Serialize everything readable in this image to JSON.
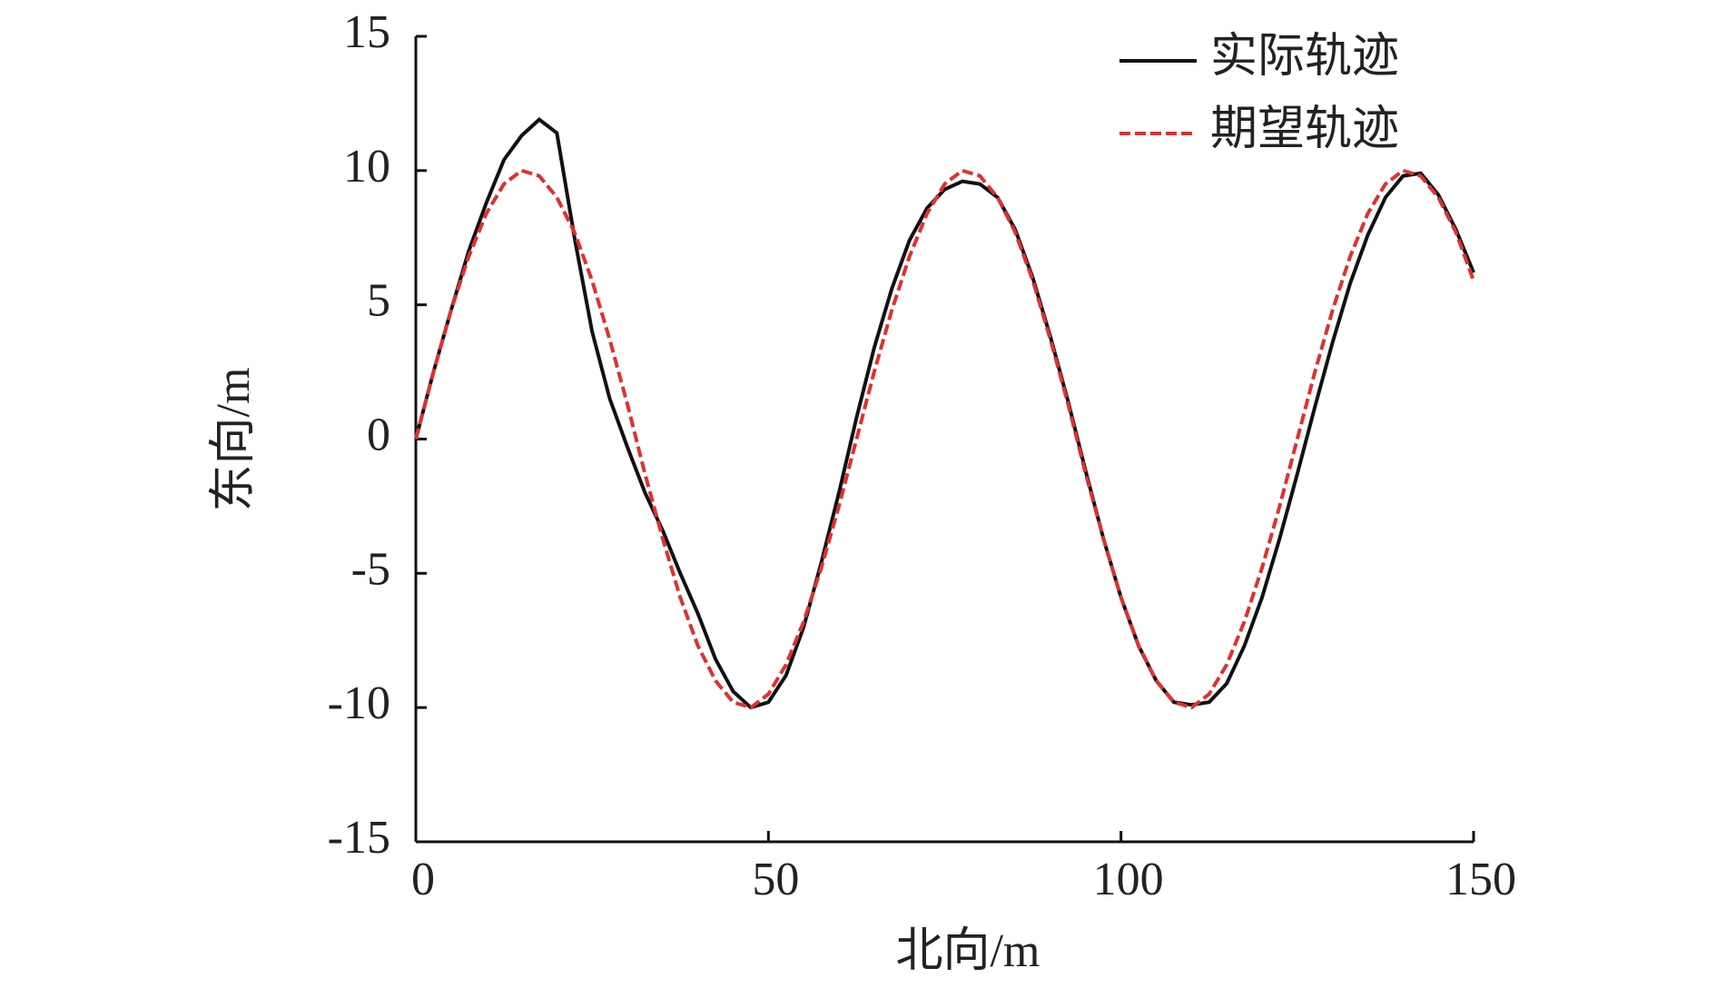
{
  "chart_data": {
    "type": "line",
    "xlabel": "北向/m",
    "ylabel": "东向/m",
    "x": [
      0,
      2.5,
      5,
      7.5,
      10,
      12.5,
      15,
      17.5,
      20,
      22.5,
      25,
      27.5,
      30,
      32.5,
      35,
      37.5,
      40,
      42.5,
      45,
      47.5,
      50,
      52.5,
      55,
      57.5,
      60,
      62.5,
      65,
      67.5,
      70,
      72.5,
      75,
      77.5,
      80,
      82.5,
      85,
      87.5,
      90,
      92.5,
      95,
      97.5,
      100,
      102.5,
      105,
      107.5,
      110,
      112.5,
      115,
      117.5,
      120,
      122.5,
      125,
      127.5,
      130,
      132.5,
      135,
      137.5,
      140,
      142.5,
      145,
      147.5,
      150
    ],
    "series": [
      {
        "name": "实际轨迹",
        "color": "#111111",
        "dash": false,
        "values": [
          0,
          2.5,
          4.8,
          7.0,
          8.8,
          10.4,
          11.3,
          11.9,
          11.4,
          7.5,
          4.0,
          1.5,
          -0.3,
          -2.0,
          -3.4,
          -5.0,
          -6.5,
          -8.2,
          -9.4,
          -10.0,
          -9.8,
          -8.8,
          -7.0,
          -4.6,
          -2.0,
          0.8,
          3.4,
          5.6,
          7.4,
          8.6,
          9.3,
          9.6,
          9.5,
          9.0,
          7.8,
          6.0,
          3.8,
          1.4,
          -1.2,
          -3.7,
          -5.9,
          -7.7,
          -9.0,
          -9.8,
          -9.9,
          -9.8,
          -9.1,
          -7.7,
          -5.9,
          -3.7,
          -1.3,
          1.2,
          3.6,
          5.8,
          7.6,
          9.0,
          9.8,
          9.9,
          9.1,
          7.8,
          6.2
        ]
      },
      {
        "name": "期望轨迹",
        "color": "#e03030",
        "dash": true,
        "values": [
          0,
          2.5,
          4.8,
          6.8,
          8.4,
          9.5,
          10.0,
          9.8,
          9.0,
          7.7,
          5.9,
          3.7,
          1.3,
          -1.3,
          -3.7,
          -5.9,
          -7.7,
          -9.0,
          -9.8,
          -10.0,
          -9.5,
          -8.4,
          -6.8,
          -4.8,
          -2.5,
          0,
          2.5,
          4.8,
          6.8,
          8.4,
          9.5,
          10.0,
          9.8,
          9.0,
          7.7,
          5.9,
          3.7,
          1.3,
          -1.3,
          -3.7,
          -5.9,
          -7.7,
          -9.0,
          -9.8,
          -10.0,
          -9.5,
          -8.4,
          -6.8,
          -4.8,
          -2.5,
          0,
          2.5,
          4.8,
          6.8,
          8.4,
          9.5,
          10.0,
          9.8,
          9.0,
          7.7,
          5.9
        ]
      }
    ],
    "xlim": [
      0,
      150
    ],
    "xticks": [
      0,
      50,
      100,
      150
    ],
    "ylim": [
      -15,
      15
    ],
    "yticks": [
      -15,
      -10,
      -5,
      0,
      5,
      10,
      15
    ],
    "legend": "upper right"
  }
}
